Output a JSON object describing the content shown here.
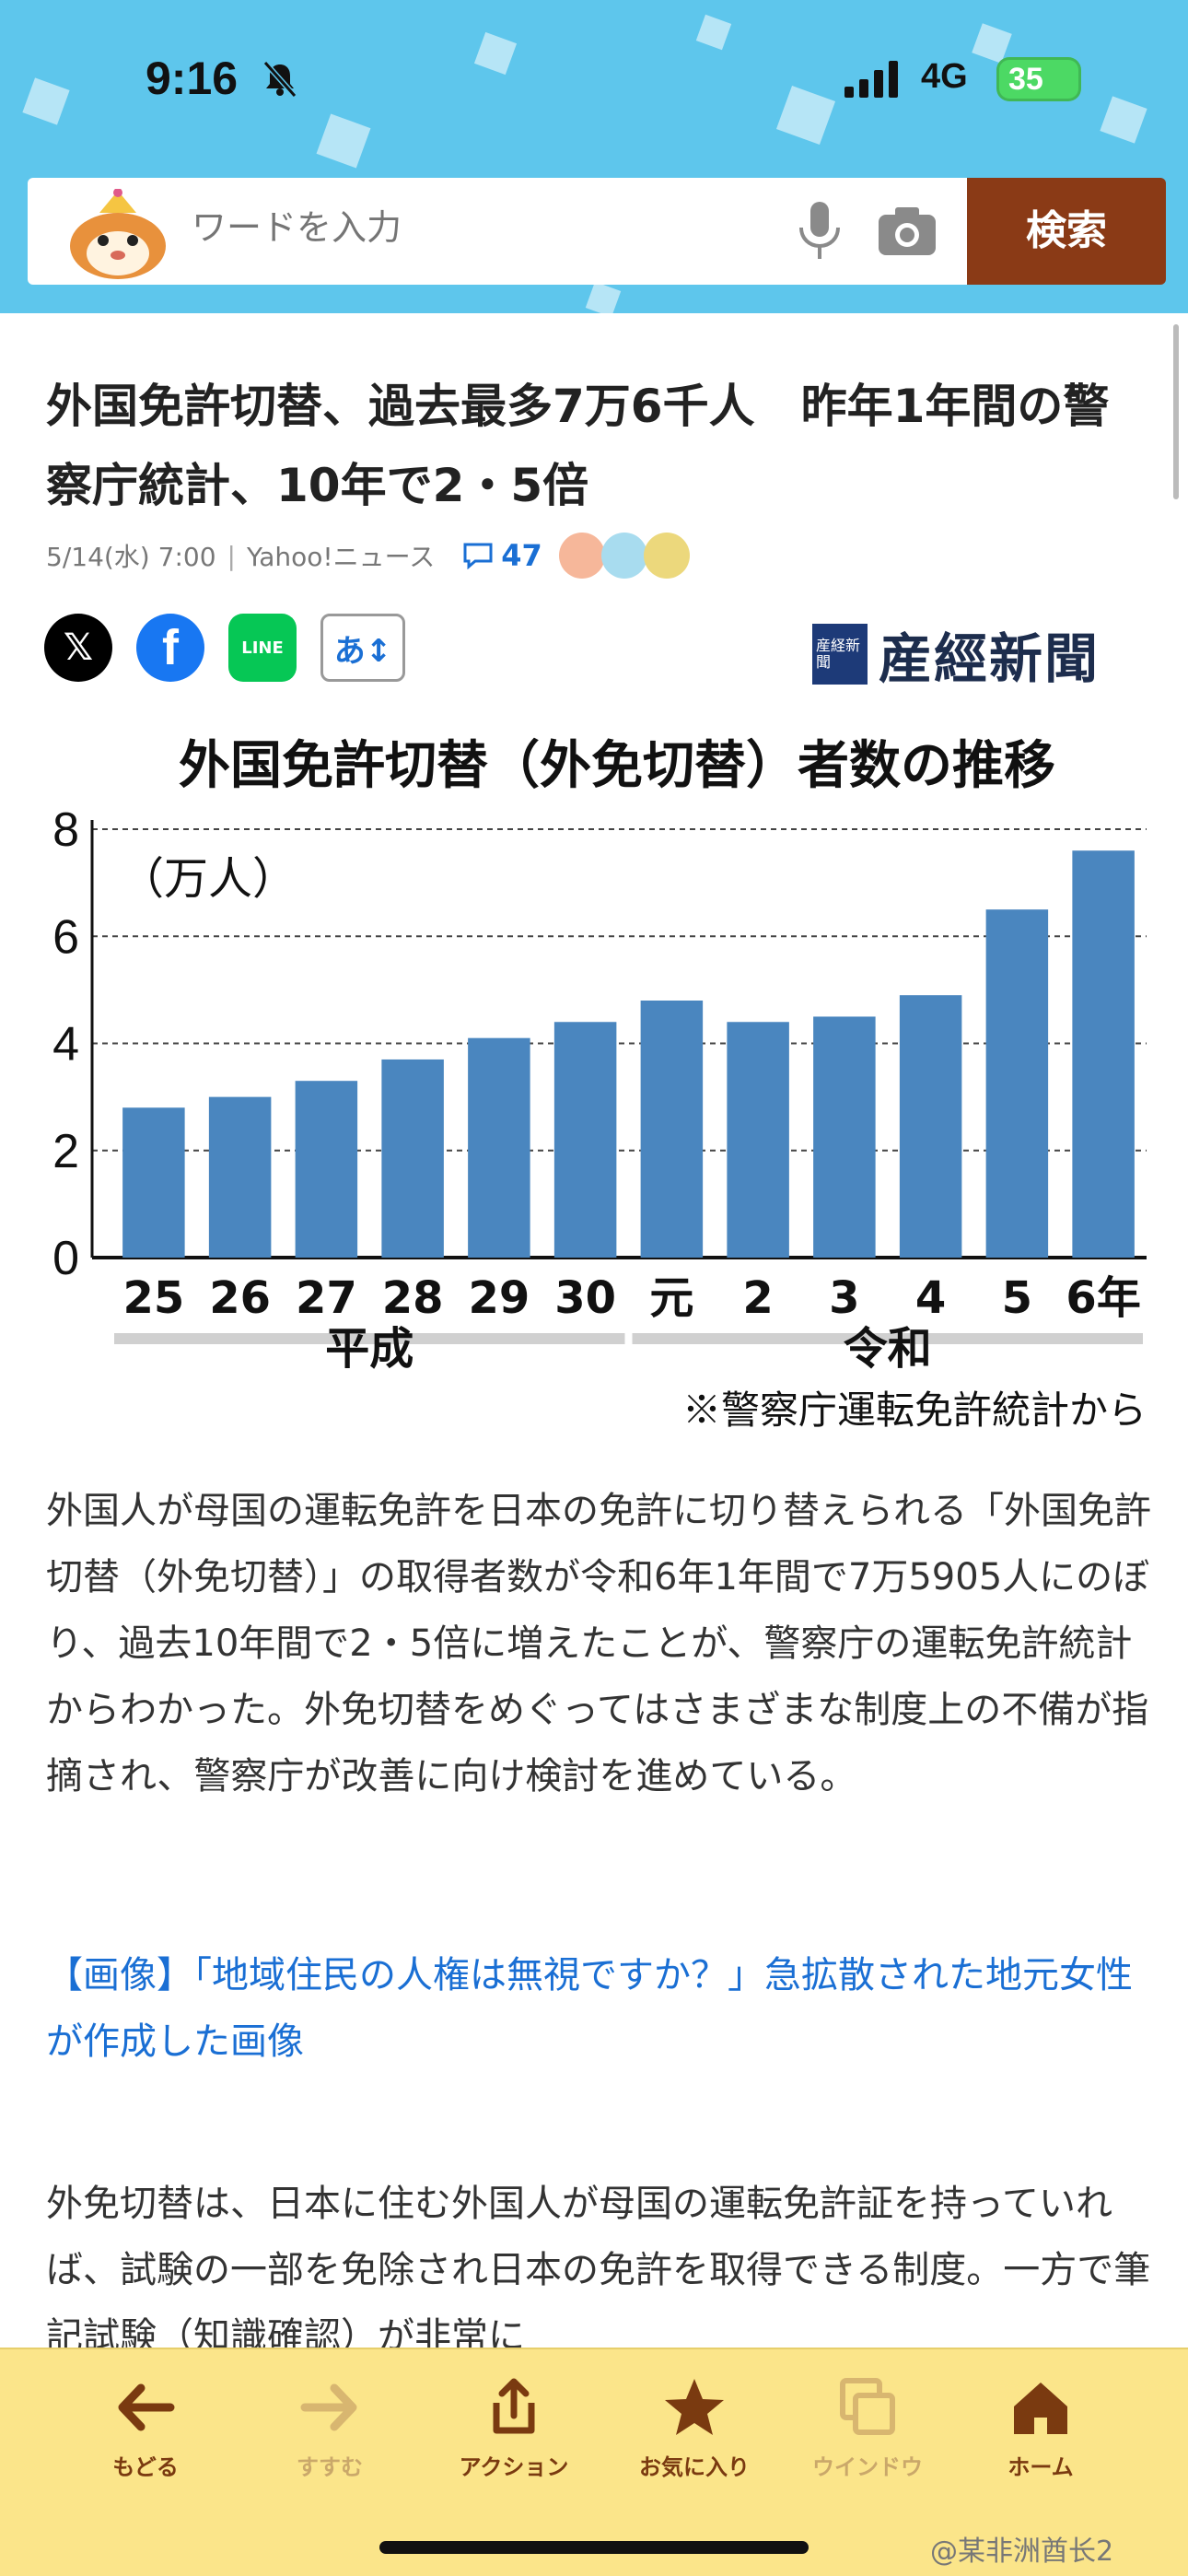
{
  "status_bar": {
    "time": "9:16",
    "network": "4G",
    "battery": "35"
  },
  "search": {
    "placeholder": "ワードを入力",
    "button_label": "検索"
  },
  "article": {
    "title": "外国免許切替、過去最多7万6千人　昨年1年間の警察庁統計、10年で2・5倍",
    "date": "5/14(水) 7:00",
    "source": "Yahoo!ニュース",
    "comment_count": "47",
    "publisher": "産經新聞",
    "publisher_mark": "産経新聞",
    "paragraph1": "外国人が母国の運転免許を日本の免許に切り替えられる「外国免許切替（外免切替）」の取得者数が令和6年1年間で7万5905人にのぼり、過去10年間で2・5倍に増えたことが、警察庁の運転免許統計からわかった。外免切替をめぐってはさまざまな制度上の不備が指摘され、警察庁が改善に向け検討を進めている。",
    "related_link": "【画像】「地域住民の人権は無視ですか？」急拡散された地元女性が作成した画像",
    "paragraph2": "外免切替は、日本に住む外国人が母国の運転免許証を持っていれば、試験の一部を免除され日本の免許を取得できる制度。一方で筆記試験（知識確認）が非常に"
  },
  "share": {
    "font_label": "あ↕",
    "line_label": "LINE"
  },
  "chart_data": {
    "type": "bar",
    "title": "外国免許切替（外免切替）者数の推移",
    "unit_label": "（万人）",
    "categories": [
      "25",
      "26",
      "27",
      "28",
      "29",
      "30",
      "元",
      "2",
      "3",
      "4",
      "5",
      "6年"
    ],
    "values": [
      2.8,
      3.0,
      3.3,
      3.7,
      4.1,
      4.4,
      4.8,
      4.4,
      4.5,
      4.9,
      6.5,
      7.6
    ],
    "era_groups": [
      {
        "label": "平成",
        "count": 6
      },
      {
        "label": "令和",
        "count": 6
      }
    ],
    "ylim": [
      0,
      8
    ],
    "yticks": [
      "0",
      "2",
      "4",
      "6",
      "8"
    ],
    "source_note": "※警察庁運転免許統計から",
    "bar_color": "#4a86bf",
    "grid": "dashed horizontal"
  },
  "toolbar": {
    "items": [
      {
        "label": "もどる",
        "enabled": true
      },
      {
        "label": "すすむ",
        "enabled": false
      },
      {
        "label": "アクション",
        "enabled": true
      },
      {
        "label": "お気に入り",
        "enabled": true
      },
      {
        "label": "ウインドウ",
        "enabled": false
      },
      {
        "label": "ホーム",
        "enabled": true
      }
    ]
  },
  "watermark": "@某非洲酋长2"
}
